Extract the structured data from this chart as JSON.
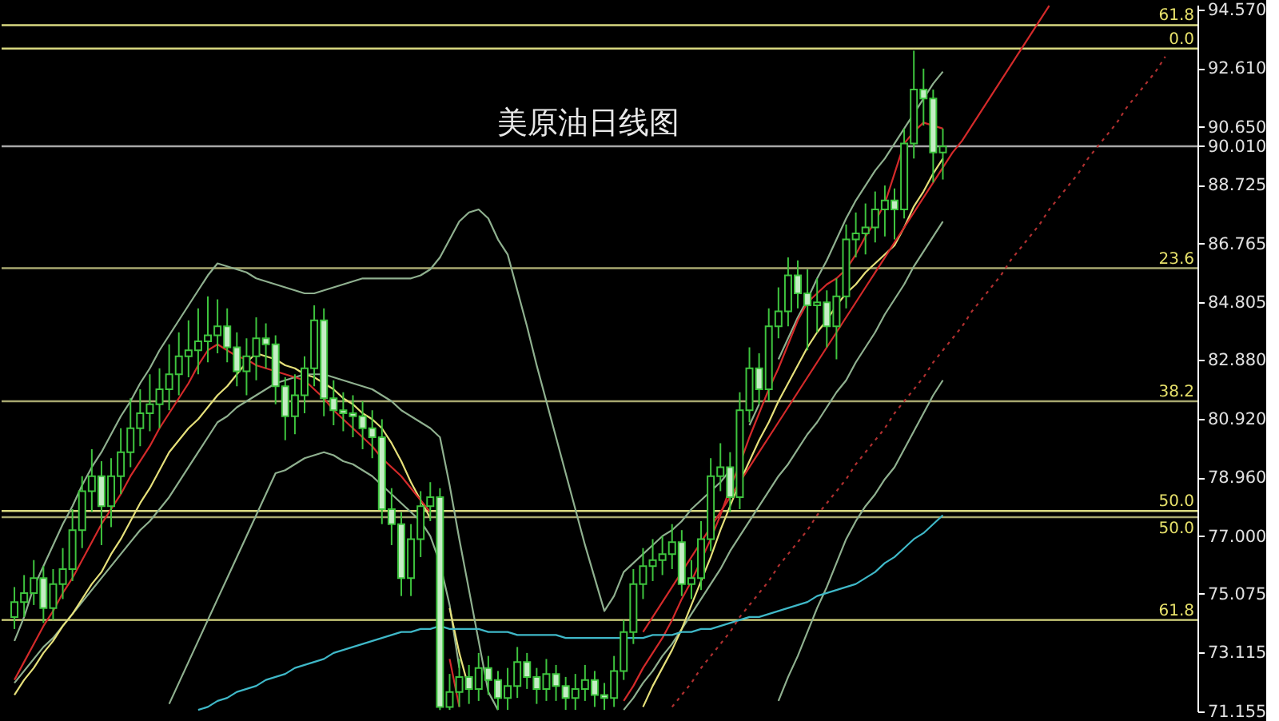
{
  "chart_data": {
    "type": "candlestick",
    "title": "美原油日线图",
    "categories": [
      null,
      null,
      null,
      null,
      null,
      null,
      null,
      null,
      null,
      null,
      null,
      null,
      null,
      null,
      null,
      null,
      null,
      null,
      null,
      null,
      null,
      null,
      null,
      null,
      null,
      null,
      null,
      null,
      null,
      null,
      null,
      null,
      null,
      null,
      null,
      null,
      null,
      null,
      null,
      null,
      null,
      null,
      null,
      null,
      null,
      null,
      null,
      null,
      null,
      null,
      null,
      null,
      null,
      null,
      null,
      null,
      null,
      null,
      null,
      null,
      null,
      null,
      null,
      null,
      null,
      null,
      null,
      null,
      null,
      null,
      null,
      null,
      null,
      null,
      null,
      null,
      null,
      null,
      null,
      null,
      null,
      null,
      null,
      null,
      null,
      null,
      null,
      null,
      null,
      null,
      null,
      null,
      null,
      null,
      null,
      null,
      null,
      null,
      null,
      null,
      null,
      null,
      null,
      null,
      null,
      null,
      null,
      null,
      null,
      null,
      null,
      null,
      null,
      null,
      null,
      null,
      null,
      null,
      null,
      null,
      null,
      null
    ],
    "series": [
      {
        "color": "#3ec43e",
        "ohlc": [
          [
            74.3,
            75.3,
            73.9,
            74.8
          ],
          [
            74.8,
            75.7,
            74.3,
            75.1
          ],
          [
            75.1,
            76.2,
            74.7,
            75.6
          ],
          [
            75.6,
            76.0,
            74.1,
            74.6
          ],
          [
            74.6,
            75.9,
            74.2,
            75.4
          ],
          [
            75.4,
            76.6,
            74.9,
            75.9
          ],
          [
            75.9,
            77.9,
            75.5,
            77.2
          ],
          [
            77.2,
            79.0,
            76.6,
            78.5
          ],
          [
            78.5,
            79.9,
            77.8,
            79.0
          ],
          [
            79.0,
            79.5,
            76.7,
            78.0
          ],
          [
            78.0,
            79.6,
            77.3,
            79.0
          ],
          [
            79.0,
            80.6,
            78.4,
            79.8
          ],
          [
            79.8,
            81.6,
            79.3,
            80.6
          ],
          [
            80.6,
            81.9,
            80.0,
            81.1
          ],
          [
            81.1,
            82.4,
            80.5,
            81.4
          ],
          [
            81.4,
            82.6,
            80.6,
            81.9
          ],
          [
            81.9,
            83.4,
            81.2,
            82.4
          ],
          [
            82.4,
            83.8,
            81.7,
            83.0
          ],
          [
            83.0,
            84.2,
            82.3,
            83.2
          ],
          [
            83.2,
            84.6,
            82.4,
            83.5
          ],
          [
            83.5,
            85.0,
            82.8,
            83.7
          ],
          [
            83.7,
            84.9,
            83.1,
            84.0
          ],
          [
            84.0,
            84.6,
            82.8,
            83.3
          ],
          [
            83.3,
            83.8,
            82.0,
            82.5
          ],
          [
            82.5,
            83.6,
            81.7,
            83.0
          ],
          [
            83.0,
            84.3,
            82.2,
            83.6
          ],
          [
            83.6,
            84.1,
            82.6,
            83.4
          ],
          [
            83.4,
            83.7,
            81.4,
            82.0
          ],
          [
            82.0,
            82.3,
            80.2,
            81.0
          ],
          [
            81.0,
            82.4,
            80.4,
            81.7
          ],
          [
            81.7,
            83.0,
            81.1,
            82.6
          ],
          [
            82.6,
            84.7,
            82.0,
            84.2
          ],
          [
            84.2,
            84.6,
            81.0,
            81.6
          ],
          [
            81.6,
            82.2,
            80.7,
            81.2
          ],
          [
            81.2,
            81.8,
            80.5,
            81.1
          ],
          [
            81.1,
            81.7,
            80.3,
            81.0
          ],
          [
            81.0,
            81.5,
            79.9,
            80.6
          ],
          [
            80.6,
            81.2,
            79.6,
            80.3
          ],
          [
            80.3,
            80.9,
            77.4,
            77.9
          ],
          [
            77.9,
            78.6,
            76.7,
            77.4
          ],
          [
            77.4,
            77.8,
            75.0,
            75.6
          ],
          [
            75.6,
            77.4,
            75.0,
            76.9
          ],
          [
            76.9,
            78.5,
            76.3,
            78.0
          ],
          [
            78.0,
            78.8,
            77.5,
            78.3
          ],
          [
            78.3,
            78.6,
            71.2,
            71.3
          ],
          [
            71.3,
            72.4,
            71.2,
            71.8
          ],
          [
            71.8,
            72.9,
            71.3,
            72.3
          ],
          [
            72.3,
            72.7,
            71.4,
            71.9
          ],
          [
            71.9,
            73.1,
            71.5,
            72.6
          ],
          [
            72.6,
            73.0,
            71.7,
            72.2
          ],
          [
            72.2,
            72.5,
            71.2,
            71.6
          ],
          [
            71.6,
            72.6,
            71.2,
            72.0
          ],
          [
            72.0,
            73.3,
            71.6,
            72.8
          ],
          [
            72.8,
            73.1,
            71.9,
            72.3
          ],
          [
            72.3,
            72.6,
            71.4,
            71.9
          ],
          [
            71.9,
            72.9,
            71.5,
            72.4
          ],
          [
            72.4,
            72.7,
            71.5,
            72.0
          ],
          [
            72.0,
            72.3,
            71.2,
            71.6
          ],
          [
            71.6,
            72.4,
            71.2,
            71.9
          ],
          [
            71.9,
            72.7,
            71.5,
            72.2
          ],
          [
            72.2,
            72.5,
            71.3,
            71.7
          ],
          [
            71.7,
            72.1,
            71.2,
            71.6
          ],
          [
            71.6,
            73.0,
            71.3,
            72.5
          ],
          [
            72.5,
            74.2,
            72.2,
            73.8
          ],
          [
            73.8,
            75.9,
            73.4,
            75.4
          ],
          [
            75.4,
            76.6,
            74.9,
            76.0
          ],
          [
            76.0,
            76.9,
            75.5,
            76.2
          ],
          [
            76.2,
            77.0,
            75.7,
            76.4
          ],
          [
            76.4,
            77.4,
            75.9,
            76.8
          ],
          [
            76.8,
            77.2,
            75.0,
            75.4
          ],
          [
            75.4,
            76.2,
            74.9,
            75.6
          ],
          [
            75.6,
            77.5,
            75.2,
            76.9
          ],
          [
            76.9,
            79.6,
            76.5,
            79.0
          ],
          [
            79.0,
            80.1,
            78.5,
            79.3
          ],
          [
            79.3,
            79.8,
            77.8,
            78.3
          ],
          [
            78.3,
            81.8,
            77.9,
            81.2
          ],
          [
            81.2,
            83.3,
            80.8,
            82.6
          ],
          [
            82.6,
            83.1,
            81.4,
            81.9
          ],
          [
            81.9,
            84.6,
            81.5,
            84.0
          ],
          [
            84.0,
            85.3,
            83.6,
            84.5
          ],
          [
            84.5,
            86.3,
            84.0,
            85.7
          ],
          [
            85.7,
            86.2,
            84.6,
            85.1
          ],
          [
            85.1,
            85.9,
            83.2,
            84.7
          ],
          [
            84.7,
            85.6,
            83.8,
            84.8
          ],
          [
            84.8,
            85.2,
            83.3,
            84.0
          ],
          [
            84.0,
            85.6,
            82.9,
            85.0
          ],
          [
            85.0,
            87.4,
            84.6,
            86.9
          ],
          [
            86.9,
            87.8,
            86.3,
            87.1
          ],
          [
            87.1,
            88.1,
            86.4,
            87.3
          ],
          [
            87.3,
            88.5,
            86.8,
            87.9
          ],
          [
            87.9,
            88.7,
            87.0,
            88.2
          ],
          [
            88.2,
            88.6,
            86.9,
            87.9
          ],
          [
            87.9,
            90.6,
            87.6,
            90.1
          ],
          [
            90.1,
            93.2,
            89.6,
            91.9
          ],
          [
            91.9,
            92.6,
            90.7,
            91.6
          ],
          [
            91.6,
            91.9,
            88.8,
            89.8
          ],
          [
            89.8,
            90.6,
            88.9,
            90.0
          ],
          null,
          null,
          null,
          null,
          null,
          null,
          null,
          null,
          null,
          null,
          null,
          null,
          null,
          null,
          null,
          null,
          null,
          null,
          null,
          null,
          null,
          null,
          null,
          null,
          null
        ]
      },
      {
        "type": "line",
        "color": "#8fb08f",
        "values": [
          73.5,
          74.3,
          75.3,
          76.0,
          76.7,
          77.4,
          78.0,
          78.7,
          79.3,
          79.8,
          80.4,
          81.0,
          81.5,
          82.1,
          82.6,
          83.2,
          83.7,
          84.2,
          84.7,
          85.2,
          85.7,
          86.1,
          86.0,
          85.9,
          85.8,
          85.6,
          85.5,
          85.4,
          85.3,
          85.2,
          85.1,
          85.1,
          85.2,
          85.3,
          85.4,
          85.5,
          85.6,
          85.6,
          85.6,
          85.6,
          85.6,
          85.6,
          85.7,
          85.9,
          86.3,
          86.9,
          87.5,
          87.8,
          87.9,
          87.6,
          86.9,
          86.4,
          85.2,
          84.0,
          82.7,
          81.5,
          80.3,
          79.1,
          77.9,
          76.7,
          75.6,
          74.5,
          75.0,
          75.8,
          76.1,
          76.4,
          76.7,
          77.0,
          77.2,
          77.5,
          77.9,
          78.2,
          78.5,
          78.8,
          79.2,
          null,
          80.7,
          81.4,
          null,
          82.9,
          83.6,
          84.3,
          84.9,
          85.6,
          86.2,
          86.9,
          87.6,
          88.2,
          88.7,
          89.2,
          89.6,
          90.1,
          90.6,
          91.1,
          91.6,
          92.1,
          92.5,
          null,
          null,
          null,
          null,
          null,
          null,
          null,
          null,
          null,
          null,
          null,
          null,
          null,
          null,
          null,
          null,
          null,
          null,
          null,
          null,
          null,
          null,
          null,
          null,
          null
        ]
      },
      {
        "type": "line",
        "color": "#8fb08f",
        "values": [
          72.1,
          72.5,
          72.9,
          73.3,
          73.6,
          74.0,
          74.4,
          74.8,
          75.2,
          75.6,
          76.0,
          76.4,
          76.8,
          77.2,
          77.5,
          77.9,
          78.3,
          78.8,
          79.3,
          79.8,
          80.3,
          80.8,
          81.0,
          81.3,
          81.5,
          81.7,
          81.9,
          82.1,
          82.2,
          82.3,
          82.4,
          82.4,
          82.4,
          82.3,
          82.2,
          82.1,
          82.0,
          81.9,
          81.7,
          81.5,
          81.2,
          81.0,
          80.8,
          80.6,
          80.3,
          78.7,
          76.9,
          75.2,
          73.5,
          71.8,
          71.2,
          null,
          null,
          null,
          null,
          null,
          null,
          null,
          null,
          null,
          null,
          null,
          null,
          71.2,
          71.6,
          72.1,
          72.5,
          73.0,
          73.4,
          73.9,
          74.4,
          74.9,
          75.4,
          75.9,
          76.5,
          77.0,
          77.5,
          78.0,
          78.5,
          79.0,
          79.4,
          79.9,
          80.4,
          80.8,
          81.3,
          81.8,
          82.2,
          82.8,
          83.3,
          83.8,
          84.4,
          84.9,
          85.4,
          86.0,
          86.5,
          87.0,
          87.5,
          null,
          null,
          null,
          null,
          null,
          null,
          null,
          null,
          null,
          null,
          null,
          null,
          null,
          null,
          null,
          null,
          null,
          null,
          null,
          null,
          null,
          null,
          null,
          null,
          null
        ]
      },
      {
        "type": "line",
        "color": "#8fb08f",
        "values": [
          null,
          null,
          null,
          null,
          null,
          null,
          null,
          null,
          null,
          null,
          null,
          null,
          null,
          null,
          null,
          null,
          71.4,
          72.1,
          72.8,
          73.5,
          74.2,
          74.9,
          75.6,
          76.3,
          77.0,
          77.7,
          78.4,
          79.1,
          79.2,
          79.4,
          79.6,
          79.7,
          79.8,
          79.7,
          79.5,
          79.4,
          79.2,
          79.0,
          78.7,
          78.4,
          78.1,
          77.8,
          77.5,
          77.0,
          76.1,
          74.7,
          72.6,
          null,
          null,
          null,
          null,
          null,
          null,
          null,
          null,
          null,
          null,
          null,
          null,
          null,
          null,
          null,
          null,
          null,
          null,
          null,
          null,
          null,
          null,
          null,
          null,
          null,
          null,
          null,
          null,
          null,
          null,
          null,
          null,
          71.5,
          72.3,
          73.0,
          73.8,
          74.6,
          75.3,
          76.1,
          76.9,
          77.5,
          78.0,
          78.4,
          78.9,
          79.3,
          79.9,
          80.5,
          81.1,
          81.7,
          82.2,
          null,
          null,
          null,
          null,
          null,
          null,
          null,
          null,
          null,
          null,
          null,
          null,
          null,
          null,
          null,
          null,
          null,
          null,
          null,
          null,
          null,
          null,
          null,
          null,
          null
        ]
      },
      {
        "type": "line",
        "color": "#e6e07a",
        "values": [
          71.7,
          72.2,
          72.6,
          73.1,
          73.5,
          74.0,
          74.4,
          74.9,
          75.4,
          75.8,
          76.4,
          76.9,
          77.5,
          78.1,
          78.6,
          79.2,
          79.8,
          80.2,
          80.6,
          80.9,
          81.3,
          81.7,
          82.0,
          82.4,
          82.8,
          83.1,
          83.0,
          82.9,
          82.7,
          82.6,
          82.4,
          82.3,
          82.1,
          81.9,
          81.6,
          81.4,
          81.1,
          80.9,
          80.6,
          80.1,
          79.5,
          78.8,
          78.2,
          77.6,
          null,
          74.6,
          73.1,
          71.9,
          null,
          null,
          null,
          null,
          null,
          null,
          null,
          null,
          null,
          null,
          null,
          null,
          null,
          null,
          null,
          null,
          null,
          71.3,
          72.0,
          72.6,
          73.2,
          73.9,
          74.7,
          75.5,
          76.3,
          77.2,
          78.0,
          78.8,
          79.5,
          80.2,
          80.8,
          81.5,
          82.1,
          82.7,
          83.3,
          83.8,
          84.2,
          84.7,
          85.1,
          85.4,
          85.8,
          86.1,
          86.4,
          86.7,
          87.3,
          88.0,
          88.5,
          89.1,
          89.6,
          null,
          null,
          null,
          null,
          null,
          null,
          null,
          null,
          null,
          null,
          null,
          null,
          null,
          null,
          null,
          null,
          null,
          null,
          null,
          null,
          null,
          null,
          null,
          null,
          null
        ]
      },
      {
        "type": "line",
        "color": "#d42a2a",
        "values": [
          72.2,
          72.8,
          73.4,
          74.0,
          74.5,
          75.1,
          75.6,
          76.2,
          76.8,
          77.4,
          77.9,
          78.4,
          79.0,
          79.5,
          80.0,
          80.6,
          81.1,
          81.6,
          82.1,
          82.7,
          83.2,
          83.4,
          83.2,
          83.0,
          82.9,
          82.7,
          82.6,
          82.5,
          82.4,
          82.3,
          82.2,
          81.9,
          81.6,
          81.2,
          80.9,
          80.6,
          80.3,
          80.0,
          79.6,
          79.3,
          79.0,
          78.6,
          78.2,
          77.8,
          null,
          72.9,
          71.3,
          null,
          null,
          null,
          null,
          null,
          null,
          null,
          null,
          null,
          null,
          null,
          null,
          null,
          null,
          null,
          null,
          71.5,
          72.0,
          72.6,
          73.1,
          73.6,
          74.2,
          74.9,
          75.5,
          76.2,
          76.9,
          77.7,
          78.6,
          79.4,
          80.3,
          81.1,
          81.9,
          82.6,
          83.4,
          84.2,
          84.8,
          85.1,
          85.4,
          85.6,
          85.9,
          86.4,
          87.0,
          87.5,
          88.1,
          89.1,
          90.1,
          90.5,
          90.8,
          90.7,
          90.6,
          null,
          null,
          null,
          null,
          null,
          null,
          null,
          null,
          null,
          null,
          null,
          null,
          null,
          null,
          null,
          null,
          null,
          null,
          null,
          null,
          null,
          null,
          null,
          null,
          null
        ]
      },
      {
        "type": "line",
        "color": "#3fb8c8",
        "values": [
          null,
          null,
          null,
          null,
          null,
          null,
          null,
          null,
          null,
          null,
          null,
          null,
          null,
          null,
          null,
          null,
          null,
          null,
          null,
          71.2,
          71.3,
          71.5,
          71.6,
          71.8,
          71.9,
          72.0,
          72.2,
          72.3,
          72.4,
          72.6,
          72.7,
          72.8,
          72.9,
          73.1,
          73.2,
          73.3,
          73.4,
          73.5,
          73.6,
          73.7,
          73.8,
          73.8,
          73.9,
          73.9,
          74.0,
          73.9,
          73.9,
          73.9,
          73.9,
          73.8,
          73.8,
          73.8,
          73.7,
          73.7,
          73.7,
          73.7,
          73.7,
          73.6,
          73.6,
          73.6,
          73.6,
          73.6,
          73.6,
          73.6,
          73.6,
          73.6,
          73.7,
          73.7,
          73.7,
          73.8,
          73.8,
          73.9,
          73.9,
          74.0,
          74.1,
          74.2,
          74.3,
          74.3,
          74.4,
          74.5,
          74.6,
          74.7,
          74.8,
          75.0,
          75.1,
          75.2,
          75.3,
          75.4,
          75.6,
          75.8,
          76.1,
          76.3,
          76.6,
          76.9,
          77.1,
          77.4,
          77.7,
          null,
          null,
          null,
          null,
          null,
          null,
          null,
          null,
          null,
          null,
          null,
          null,
          null,
          null,
          null,
          null,
          null,
          null,
          null,
          null,
          null,
          null,
          null,
          null,
          null
        ]
      },
      {
        "type": "line",
        "color": "#d42a2a",
        "line_style": "solid",
        "values": [
          null,
          null,
          null,
          null,
          null,
          null,
          null,
          null,
          null,
          null,
          null,
          null,
          null,
          null,
          null,
          null,
          null,
          null,
          null,
          null,
          null,
          null,
          null,
          null,
          null,
          null,
          null,
          null,
          null,
          null,
          null,
          null,
          null,
          null,
          null,
          null,
          null,
          null,
          null,
          null,
          null,
          null,
          null,
          null,
          null,
          null,
          null,
          null,
          null,
          null,
          null,
          null,
          null,
          null,
          null,
          null,
          null,
          null,
          null,
          null,
          null,
          null,
          null,
          null,
          null,
          73.8,
          74.3,
          74.8,
          75.3,
          75.8,
          76.3,
          76.8,
          77.3,
          77.8,
          78.3,
          78.8,
          79.3,
          79.8,
          80.3,
          80.8,
          81.3,
          81.8,
          82.3,
          82.8,
          83.3,
          83.8,
          84.3,
          84.8,
          85.3,
          85.8,
          86.3,
          86.8,
          87.3,
          87.8,
          88.3,
          88.8,
          89.3,
          89.8,
          90.2,
          90.7,
          91.2,
          91.7,
          92.2,
          92.7,
          93.2,
          93.7,
          94.2,
          94.7,
          null,
          null,
          null,
          null,
          null,
          null,
          null,
          null,
          null,
          null,
          null,
          null,
          null,
          null
        ]
      },
      {
        "type": "line",
        "color": "#b03030",
        "line_style": "dotted",
        "values": [
          null,
          null,
          null,
          null,
          null,
          null,
          null,
          null,
          null,
          null,
          null,
          null,
          null,
          null,
          null,
          null,
          null,
          null,
          null,
          null,
          null,
          null,
          null,
          null,
          null,
          null,
          null,
          null,
          null,
          null,
          null,
          null,
          null,
          null,
          null,
          null,
          null,
          null,
          null,
          null,
          null,
          null,
          null,
          null,
          null,
          null,
          null,
          null,
          null,
          null,
          null,
          null,
          null,
          null,
          null,
          null,
          null,
          null,
          null,
          null,
          null,
          null,
          null,
          null,
          null,
          null,
          null,
          null,
          71.3,
          71.7,
          72.1,
          72.6,
          73.0,
          73.4,
          73.8,
          74.3,
          74.7,
          75.1,
          75.5,
          76.0,
          76.4,
          76.8,
          77.2,
          77.7,
          78.1,
          78.5,
          78.9,
          79.4,
          79.8,
          80.2,
          80.6,
          81.1,
          81.5,
          81.9,
          82.3,
          82.8,
          83.2,
          83.6,
          84.0,
          84.5,
          84.9,
          85.3,
          85.7,
          86.2,
          86.6,
          87.0,
          87.4,
          87.9,
          88.3,
          88.7,
          89.1,
          89.6,
          90.0,
          90.4,
          90.8,
          91.3,
          91.7,
          92.1,
          92.5,
          93.0,
          null,
          null
        ]
      }
    ],
    "ylim": [
      71.15,
      94.73
    ],
    "yticks": [
      {
        "value": 94.57,
        "label": "94.570"
      },
      {
        "value": 92.61,
        "label": "92.610"
      },
      {
        "value": 90.65,
        "label": "90.650"
      },
      {
        "value": 90.01,
        "label": "90.010"
      },
      {
        "value": 88.725,
        "label": "88.725"
      },
      {
        "value": 86.765,
        "label": "86.765"
      },
      {
        "value": 84.805,
        "label": "84.805"
      },
      {
        "value": 82.88,
        "label": "82.880"
      },
      {
        "value": 80.92,
        "label": "80.920"
      },
      {
        "value": 78.96,
        "label": "78.960"
      },
      {
        "value": 77.0,
        "label": "77.000"
      },
      {
        "value": 75.075,
        "label": "75.075"
      },
      {
        "value": 73.115,
        "label": "73.115"
      },
      {
        "value": 71.155,
        "label": "71.155"
      }
    ],
    "ref_lines": [
      {
        "axis": "y",
        "value": 94.05,
        "color": "#d8d880"
      },
      {
        "axis": "y",
        "value": 93.27,
        "color": "#d8d880"
      },
      {
        "axis": "y",
        "value": 90.01,
        "color": "#a8a8a8"
      },
      {
        "axis": "y",
        "value": 85.94,
        "color": "#a8a870"
      },
      {
        "axis": "y",
        "value": 81.5,
        "color": "#a8a870"
      },
      {
        "axis": "y",
        "value": 77.84,
        "color": "#d8d880"
      },
      {
        "axis": "y",
        "value": 77.63,
        "color": "#a8a870"
      },
      {
        "axis": "y",
        "value": 74.2,
        "color": "#d8d880"
      }
    ],
    "annotations": [
      {
        "text": "61.8",
        "y": 94.05
      },
      {
        "text": "0.0",
        "y": 93.27
      },
      {
        "text": "23.6",
        "y": 85.94
      },
      {
        "text": "38.2",
        "y": 81.5
      },
      {
        "text": "50.0",
        "y": 77.84
      },
      {
        "text": "50.0",
        "y": 77.63
      },
      {
        "text": "61.8",
        "y": 74.2
      }
    ],
    "tick_labels": "y",
    "grid": false,
    "legend": false
  }
}
